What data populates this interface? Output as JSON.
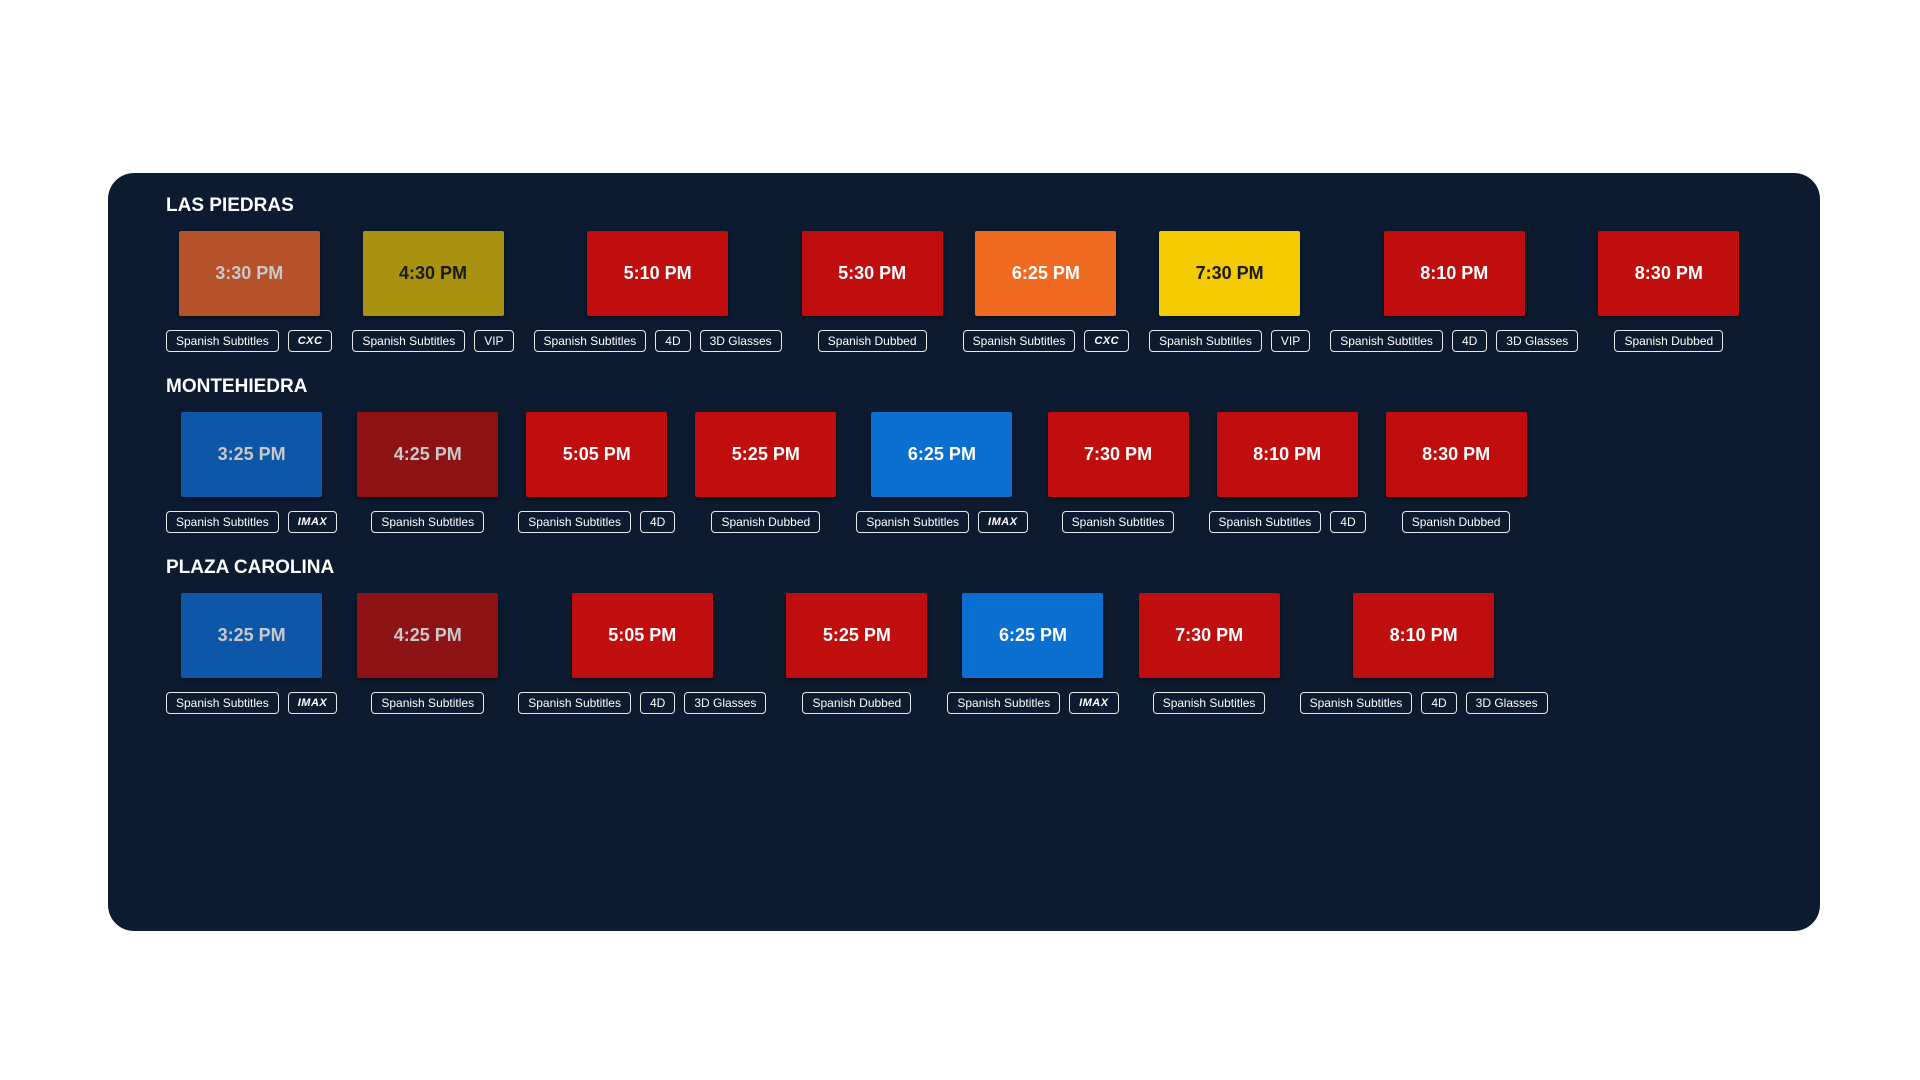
{
  "theaters": [
    {
      "name": "LAS PIEDRAS",
      "showtimes": [
        {
          "time": "3:30 PM",
          "color": "#b5522a",
          "text": "muted",
          "badges": [
            "Spanish Subtitles",
            "CXC"
          ]
        },
        {
          "time": "4:30 PM",
          "color": "#a8920f",
          "text": "dark",
          "badges": [
            "Spanish Subtitles",
            "VIP"
          ]
        },
        {
          "time": "5:10 PM",
          "color": "#c00d0d",
          "text": "light",
          "badges": [
            "Spanish Subtitles",
            "4D",
            "3D Glasses"
          ]
        },
        {
          "time": "5:30 PM",
          "color": "#c00d0d",
          "text": "light",
          "badges": [
            "Spanish Dubbed"
          ]
        },
        {
          "time": "6:25 PM",
          "color": "#f06a22",
          "text": "light",
          "badges": [
            "Spanish Subtitles",
            "CXC"
          ]
        },
        {
          "time": "7:30 PM",
          "color": "#f4cb00",
          "text": "dark",
          "badges": [
            "Spanish Subtitles",
            "VIP"
          ]
        },
        {
          "time": "8:10 PM",
          "color": "#c00d0d",
          "text": "light",
          "badges": [
            "Spanish Subtitles",
            "4D",
            "3D Glasses"
          ]
        },
        {
          "time": "8:30 PM",
          "color": "#c00d0d",
          "text": "light",
          "badges": [
            "Spanish Dubbed"
          ]
        }
      ]
    },
    {
      "name": "MONTEHIEDRA",
      "showtimes": [
        {
          "time": "3:25 PM",
          "color": "#0e56a8",
          "text": "muted",
          "badges": [
            "Spanish Subtitles",
            "IMAX"
          ]
        },
        {
          "time": "4:25 PM",
          "color": "#8e1316",
          "text": "muted",
          "badges": [
            "Spanish Subtitles"
          ]
        },
        {
          "time": "5:05 PM",
          "color": "#c00d0d",
          "text": "light",
          "badges": [
            "Spanish Subtitles",
            "4D"
          ]
        },
        {
          "time": "5:25 PM",
          "color": "#c00d0d",
          "text": "light",
          "badges": [
            "Spanish Dubbed"
          ]
        },
        {
          "time": "6:25 PM",
          "color": "#0a6fd0",
          "text": "light",
          "badges": [
            "Spanish Subtitles",
            "IMAX"
          ]
        },
        {
          "time": "7:30 PM",
          "color": "#c00d0d",
          "text": "light",
          "badges": [
            "Spanish Subtitles"
          ]
        },
        {
          "time": "8:10 PM",
          "color": "#c00d0d",
          "text": "light",
          "badges": [
            "Spanish Subtitles",
            "4D"
          ]
        },
        {
          "time": "8:30 PM",
          "color": "#c00d0d",
          "text": "light",
          "badges": [
            "Spanish Dubbed"
          ]
        }
      ]
    },
    {
      "name": "PLAZA CAROLINA",
      "showtimes": [
        {
          "time": "3:25 PM",
          "color": "#0e56a8",
          "text": "muted",
          "badges": [
            "Spanish Subtitles",
            "IMAX"
          ]
        },
        {
          "time": "4:25 PM",
          "color": "#8e1316",
          "text": "muted",
          "badges": [
            "Spanish Subtitles"
          ]
        },
        {
          "time": "5:05 PM",
          "color": "#c00d0d",
          "text": "light",
          "badges": [
            "Spanish Subtitles",
            "4D",
            "3D Glasses"
          ]
        },
        {
          "time": "5:25 PM",
          "color": "#c00d0d",
          "text": "light",
          "badges": [
            "Spanish Dubbed"
          ]
        },
        {
          "time": "6:25 PM",
          "color": "#0a6fd0",
          "text": "light",
          "badges": [
            "Spanish Subtitles",
            "IMAX"
          ]
        },
        {
          "time": "7:30 PM",
          "color": "#c00d0d",
          "text": "light",
          "badges": [
            "Spanish Subtitles"
          ]
        },
        {
          "time": "8:10 PM",
          "color": "#c00d0d",
          "text": "light",
          "badges": [
            "Spanish Subtitles",
            "4D",
            "3D Glasses"
          ]
        }
      ]
    }
  ]
}
